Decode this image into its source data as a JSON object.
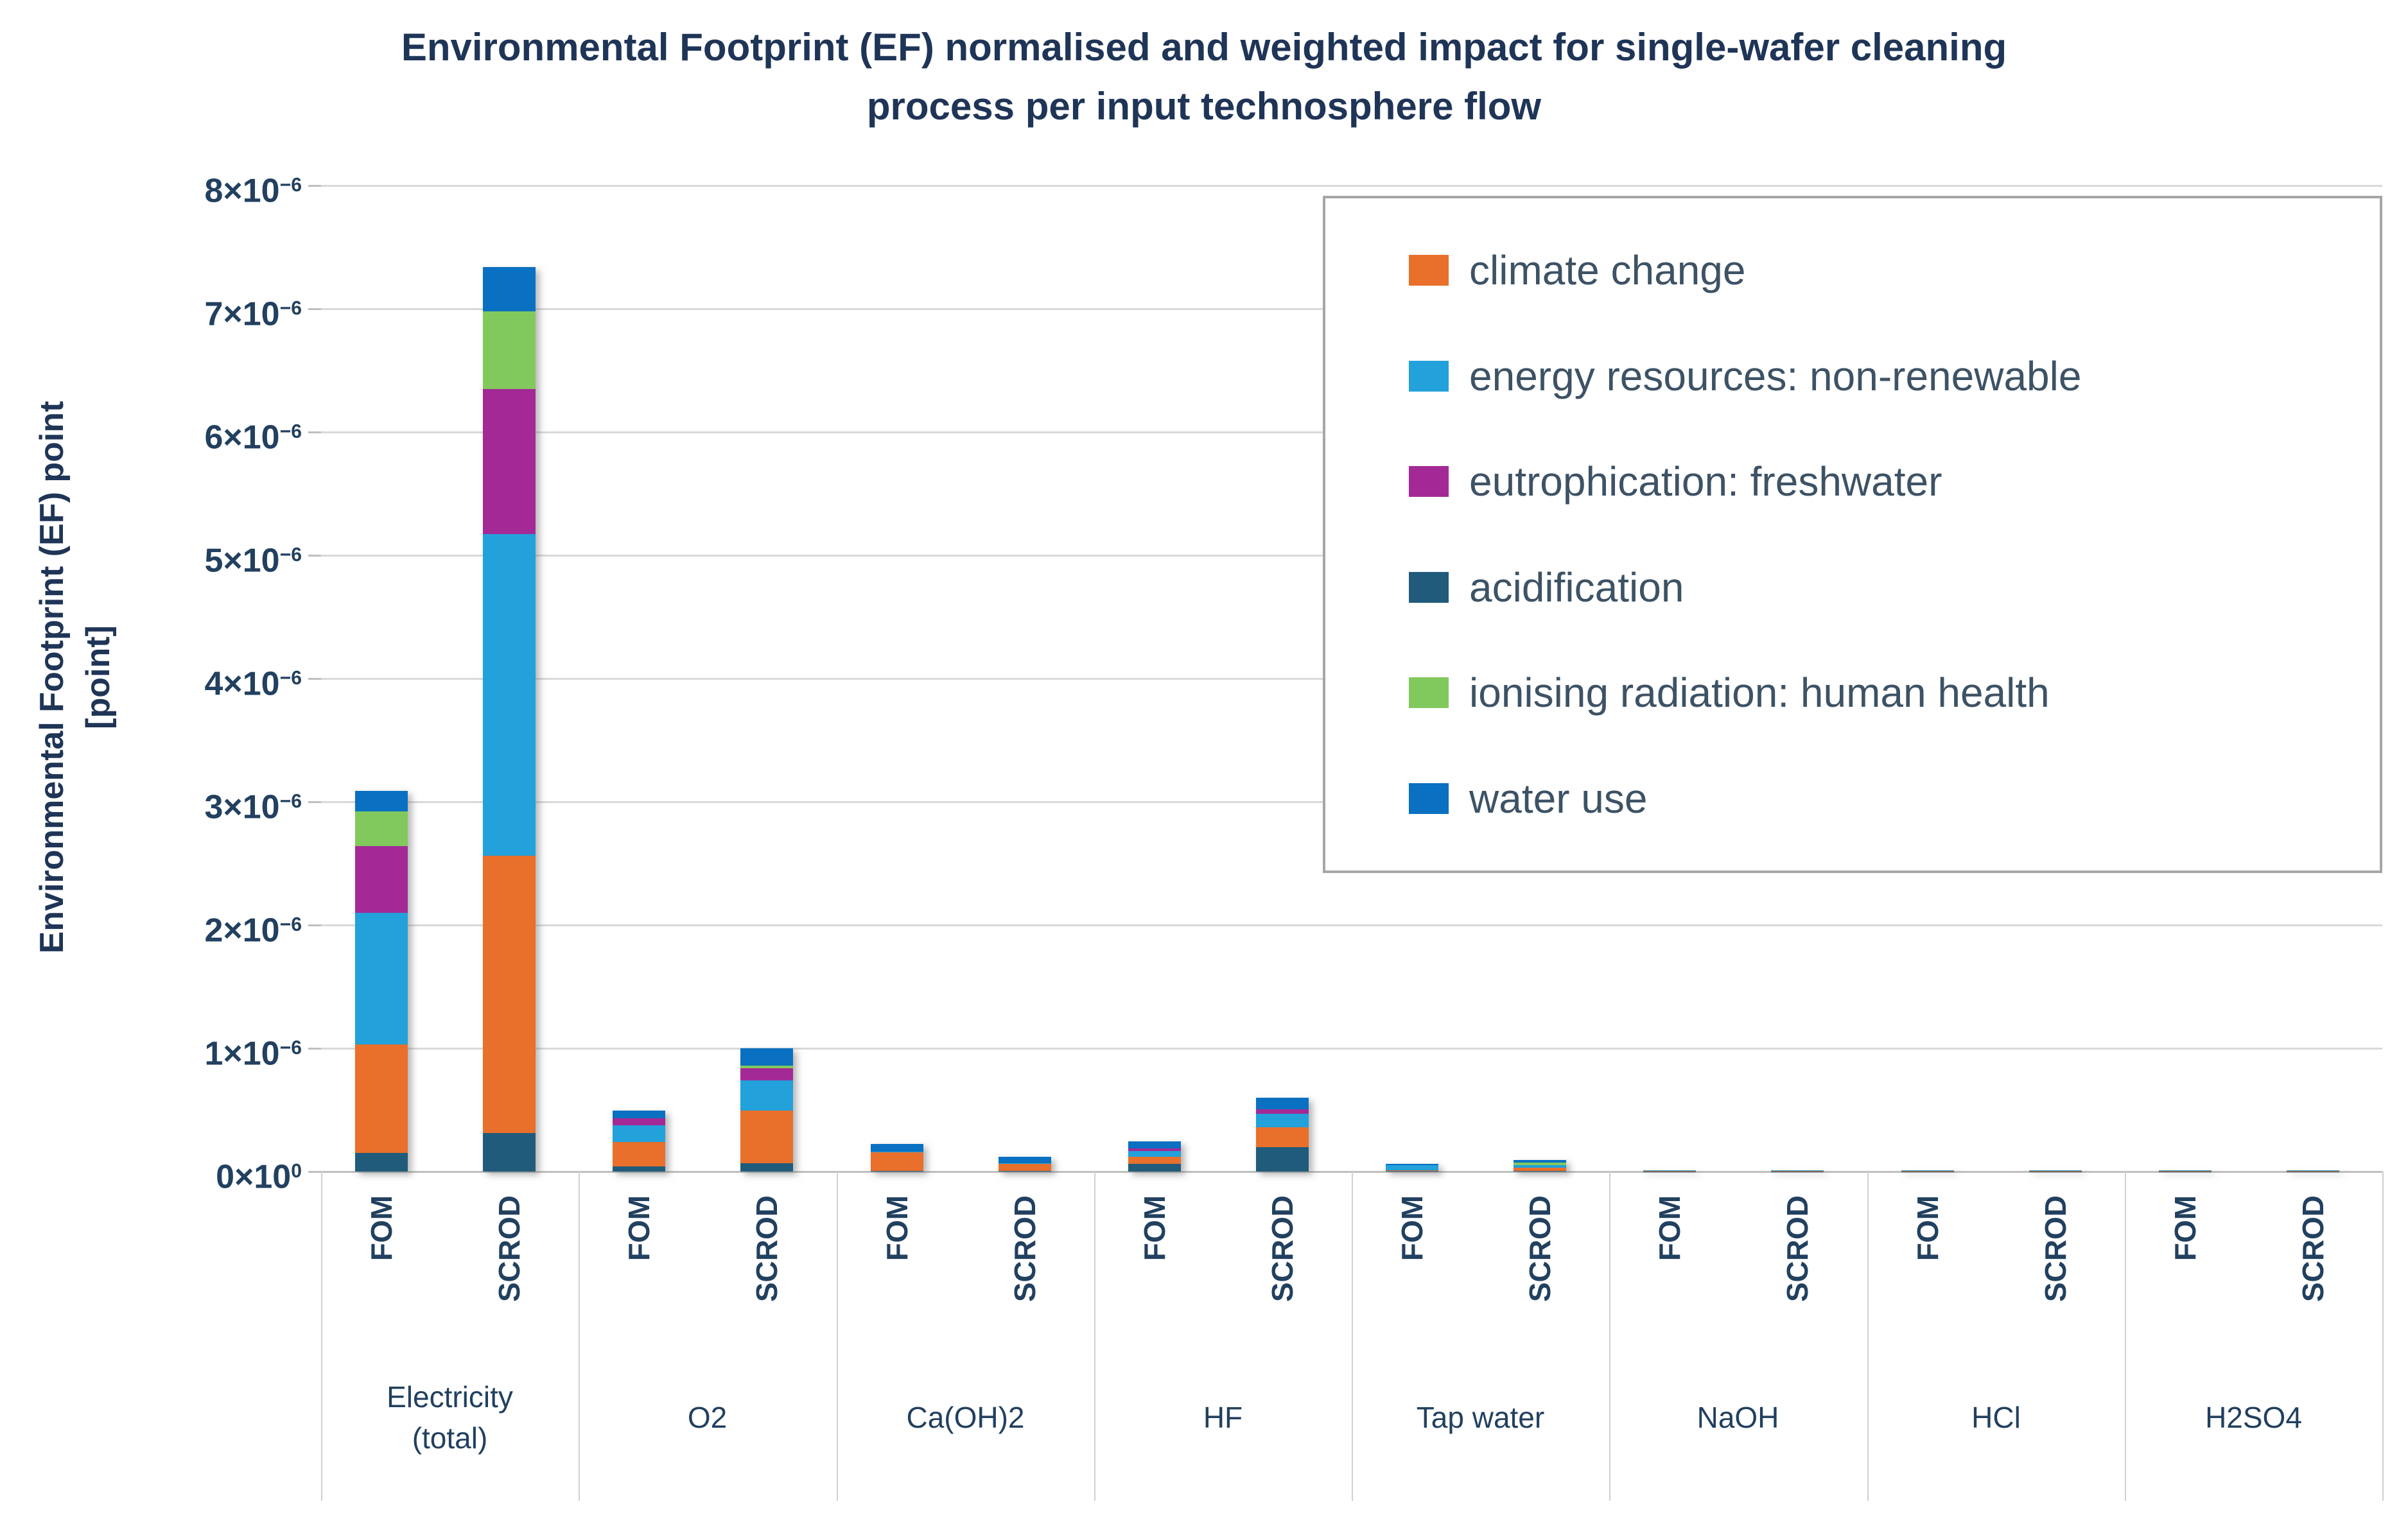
{
  "title": {
    "line1": "Environmental Footprint (EF) normalised and weighted impact for single-wafer cleaning",
    "line2": "process per input technosphere flow"
  },
  "y_axis": {
    "title": "Environmental Footprint (EF) point",
    "unit": "[point]",
    "ticks": [
      {
        "base": "0×10",
        "exp": "0"
      },
      {
        "base": "1×10",
        "exp": "−6"
      },
      {
        "base": "2×10",
        "exp": "−6"
      },
      {
        "base": "3×10",
        "exp": "−6"
      },
      {
        "base": "4×10",
        "exp": "−6"
      },
      {
        "base": "5×10",
        "exp": "−6"
      },
      {
        "base": "6×10",
        "exp": "−6"
      },
      {
        "base": "7×10",
        "exp": "−6"
      },
      {
        "base": "8×10",
        "exp": "−6"
      }
    ]
  },
  "chart_data": {
    "type": "bar",
    "subtype": "stacked-column",
    "title": "Environmental Footprint (EF) normalised and weighted impact for single-wafer cleaning process per input technosphere flow",
    "ylabel": "Environmental Footprint (EF) point [point]",
    "value_scale": "1e-6",
    "ylim": [
      0,
      8
    ],
    "grid": true,
    "legend_position": "upper-right-inside",
    "categories": [
      "Electricity (total)",
      "O2",
      "Ca(OH)2",
      "HF",
      "Tap water",
      "NaOH",
      "HCl",
      "H2SO4"
    ],
    "bar_labels": [
      "FOM",
      "SCROD"
    ],
    "stack_order": [
      "acidification",
      "climate change",
      "energy resources: non-renewable",
      "eutrophication: freshwater",
      "ionising radiation: human health",
      "water use"
    ],
    "series": [
      {
        "name": "climate change",
        "color": "#e8702b",
        "values": [
          0.88,
          2.25,
          0.2,
          0.425,
          0.15,
          0.062,
          0.055,
          0.16,
          0.004,
          0.026,
          0.004,
          0.004,
          0.004,
          0.004,
          0.004,
          0.004
        ]
      },
      {
        "name": "energy resources: non-renewable",
        "color": "#22a1db",
        "values": [
          1.07,
          2.61,
          0.135,
          0.245,
          0.005,
          0.003,
          0.045,
          0.11,
          0.042,
          0.02,
          0.003,
          0.003,
          0.003,
          0.003,
          0.003,
          0.003
        ]
      },
      {
        "name": "eutrophication: freshwater",
        "color": "#a32a96",
        "values": [
          0.54,
          1.18,
          0.055,
          0.1,
          0.0,
          0.0,
          0.025,
          0.035,
          0.0,
          0.0,
          0.001,
          0.001,
          0.001,
          0.001,
          0.001,
          0.001
        ]
      },
      {
        "name": "acidification",
        "color": "#205b7b",
        "values": [
          0.15,
          0.31,
          0.04,
          0.07,
          0.005,
          0.003,
          0.065,
          0.2,
          0.004,
          0.004,
          0.002,
          0.002,
          0.002,
          0.002,
          0.002,
          0.002
        ]
      },
      {
        "name": "ionising radiation: human health",
        "color": "#82c95d",
        "values": [
          0.28,
          0.63,
          0.0,
          0.02,
          0.0,
          0.0,
          0.0,
          0.0,
          0.0,
          0.022,
          0.0,
          0.0,
          0.0,
          0.0,
          0.0,
          0.0
        ]
      },
      {
        "name": "water use",
        "color": "#0a70c2",
        "values": [
          0.17,
          0.36,
          0.065,
          0.14,
          0.065,
          0.052,
          0.055,
          0.095,
          0.01,
          0.023,
          0.001,
          0.001,
          0.001,
          0.001,
          0.001,
          0.001
        ]
      }
    ]
  }
}
